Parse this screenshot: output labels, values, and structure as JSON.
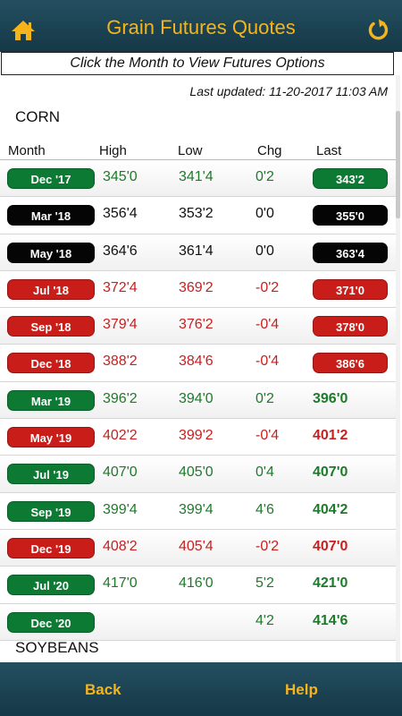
{
  "header": {
    "title": "Grain Futures Quotes",
    "left_icon": "home-icon",
    "right_icon": "refresh-icon"
  },
  "colors": {
    "header_bg": "#1c4554",
    "accent": "#f6b41b",
    "up": "#0d7a34",
    "down": "#c81d19",
    "unchanged": "#050505"
  },
  "banner": {
    "text": "Click the Month to View Futures Options"
  },
  "last_updated": "Last updated: 11-20-2017 11:03 AM",
  "sections": [
    {
      "title": "CORN"
    },
    {
      "title": "SOYBEANS"
    }
  ],
  "columns": {
    "month": "Month",
    "high": "High",
    "low": "Low",
    "chg": "Chg",
    "last": "Last"
  },
  "quotes": [
    {
      "month": "Dec '17",
      "high": "345'0",
      "low": "341'4",
      "chg": "0'2",
      "last": "343'2",
      "status": "green",
      "last_style": "button"
    },
    {
      "month": "Mar '18",
      "high": "356'4",
      "low": "353'2",
      "chg": "0'0",
      "last": "355'0",
      "status": "black",
      "last_style": "button"
    },
    {
      "month": "May '18",
      "high": "364'6",
      "low": "361'4",
      "chg": "0'0",
      "last": "363'4",
      "status": "black",
      "last_style": "button"
    },
    {
      "month": "Jul '18",
      "high": "372'4",
      "low": "369'2",
      "chg": "-0'2",
      "last": "371'0",
      "status": "red",
      "last_style": "button"
    },
    {
      "month": "Sep '18",
      "high": "379'4",
      "low": "376'2",
      "chg": "-0'4",
      "last": "378'0",
      "status": "red",
      "last_style": "button"
    },
    {
      "month": "Dec '18",
      "high": "388'2",
      "low": "384'6",
      "chg": "-0'4",
      "last": "386'6",
      "status": "red",
      "last_style": "button"
    },
    {
      "month": "Mar '19",
      "high": "396'2",
      "low": "394'0",
      "chg": "0'2",
      "last": "396'0",
      "status": "green",
      "last_style": "text"
    },
    {
      "month": "May '19",
      "high": "402'2",
      "low": "399'2",
      "chg": "-0'4",
      "last": "401'2",
      "status": "red",
      "last_style": "text"
    },
    {
      "month": "Jul '19",
      "high": "407'0",
      "low": "405'0",
      "chg": "0'4",
      "last": "407'0",
      "status": "green",
      "last_style": "text"
    },
    {
      "month": "Sep '19",
      "high": "399'4",
      "low": "399'4",
      "chg": "4'6",
      "last": "404'2",
      "status": "green",
      "last_style": "text"
    },
    {
      "month": "Dec '19",
      "high": "408'2",
      "low": "405'4",
      "chg": "-0'2",
      "last": "407'0",
      "status": "red",
      "last_style": "text"
    },
    {
      "month": "Jul '20",
      "high": "417'0",
      "low": "416'0",
      "chg": "5'2",
      "last": "421'0",
      "status": "green",
      "last_style": "text"
    },
    {
      "month": "Dec '20",
      "high": "",
      "low": "",
      "chg": "4'2",
      "last": "414'6",
      "status": "green",
      "last_style": "text"
    }
  ],
  "footer": {
    "back_label": "Back",
    "help_label": "Help"
  }
}
